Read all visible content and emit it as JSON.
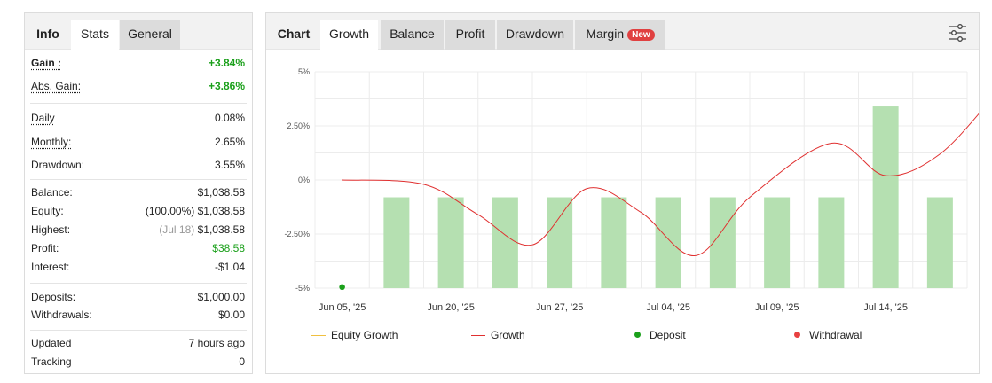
{
  "left_tabs": [
    {
      "label": "Info"
    },
    {
      "label": "Stats"
    },
    {
      "label": "General"
    }
  ],
  "stats": {
    "gain_label": "Gain :",
    "gain_value": "+3.84%",
    "abs_gain_label": "Abs. Gain:",
    "abs_gain_value": "+3.86%",
    "daily_label": "Daily",
    "daily_value": "0.08%",
    "monthly_label": "Monthly:",
    "monthly_value": "2.65%",
    "drawdown_label": "Drawdown:",
    "drawdown_value": "3.55%",
    "balance_label": "Balance:",
    "balance_value": "$1,038.58",
    "equity_label": "Equity:",
    "equity_pct": "(100.00%)",
    "equity_value": "$1,038.58",
    "highest_label": "Highest:",
    "highest_date": "(Jul 18)",
    "highest_value": "$1,038.58",
    "profit_label": "Profit:",
    "profit_value": "$38.58",
    "interest_label": "Interest:",
    "interest_value": "-$1.04",
    "deposits_label": "Deposits:",
    "deposits_value": "$1,000.00",
    "withdrawals_label": "Withdrawals:",
    "withdrawals_value": "$0.00",
    "updated_label": "Updated",
    "updated_value": "7 hours ago",
    "tracking_label": "Tracking",
    "tracking_value": "0"
  },
  "right_tabs": {
    "chart": "Chart",
    "growth": "Growth",
    "balance": "Balance",
    "profit": "Profit",
    "drawdown": "Drawdown",
    "margin": "Margin",
    "new_badge": "New"
  },
  "icons": {
    "settings": "sliders-icon"
  },
  "colors": {
    "gain": "#1ba01b",
    "bar": "#b5e0b1",
    "growth_line": "#e03030",
    "equity_line": "#f0c040",
    "deposit": "#1ba01b",
    "withdrawal": "#e84040"
  },
  "chart_data": {
    "type": "bar",
    "y_ticks": [
      "5%",
      "2.50%",
      "0%",
      "-2.50%",
      "-5%"
    ],
    "ylim": [
      -5,
      5
    ],
    "x_tick_labels": [
      "Jun 05, '25",
      "Jun 20, '25",
      "Jun 27, '25",
      "Jul 04, '25",
      "Jul 09, '25",
      "Jul 14, '25"
    ],
    "grid": true,
    "legend_position": "bottom",
    "series": [
      {
        "name": "Growth",
        "type": "bar",
        "values": [
          -0.8,
          -0.8,
          -0.8,
          -0.8,
          -0.8,
          -0.8,
          -0.8,
          -0.8,
          -0.8,
          3.4,
          -0.8
        ]
      },
      {
        "name": "Growth",
        "type": "line",
        "points": [
          [
            0,
            0.0
          ],
          [
            1.5,
            -0.2
          ],
          [
            2.5,
            -1.6
          ],
          [
            3.5,
            -3.0
          ],
          [
            4.5,
            -0.4
          ],
          [
            5.5,
            -1.5
          ],
          [
            6.5,
            -3.5
          ],
          [
            7.5,
            -0.8
          ],
          [
            9.0,
            1.7
          ],
          [
            10.0,
            0.2
          ],
          [
            11.0,
            1.2
          ],
          [
            12.0,
            3.9
          ]
        ]
      },
      {
        "name": "Equity Growth",
        "type": "line",
        "points": []
      },
      {
        "name": "Deposit",
        "type": "marker",
        "points": [
          [
            0,
            -4.95
          ]
        ]
      }
    ],
    "legend": [
      "Equity Growth",
      "Growth",
      "Deposit",
      "Withdrawal"
    ]
  }
}
